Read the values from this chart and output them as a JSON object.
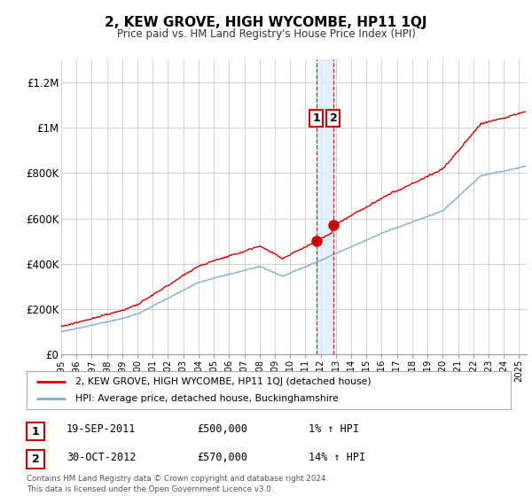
{
  "title": "2, KEW GROVE, HIGH WYCOMBE, HP11 1QJ",
  "subtitle": "Price paid vs. HM Land Registry's House Price Index (HPI)",
  "ylabel_ticks": [
    "£0",
    "£200K",
    "£400K",
    "£600K",
    "£800K",
    "£1M",
    "£1.2M"
  ],
  "ytick_vals": [
    0,
    200000,
    400000,
    600000,
    800000,
    1000000,
    1200000
  ],
  "ylim": [
    0,
    1300000
  ],
  "xlim_start": 1995.0,
  "xlim_end": 2025.5,
  "red_line_color": "#cc0000",
  "blue_line_color": "#7aaed4",
  "sale1_year": 2011.72,
  "sale1_price": 500000,
  "sale2_year": 2012.83,
  "sale2_price": 570000,
  "legend_label_red": "2, KEW GROVE, HIGH WYCOMBE, HP11 1QJ (detached house)",
  "legend_label_blue": "HPI: Average price, detached house, Buckinghamshire",
  "table_rows": [
    [
      "1",
      "19-SEP-2011",
      "£500,000",
      "1% ↑ HPI"
    ],
    [
      "2",
      "30-OCT-2012",
      "£570,000",
      "14% ↑ HPI"
    ]
  ],
  "footer": "Contains HM Land Registry data © Crown copyright and database right 2024.\nThis data is licensed under the Open Government Licence v3.0.",
  "background_color": "#ffffff",
  "grid_color": "#cccccc",
  "shade_color": "#ddeeff"
}
